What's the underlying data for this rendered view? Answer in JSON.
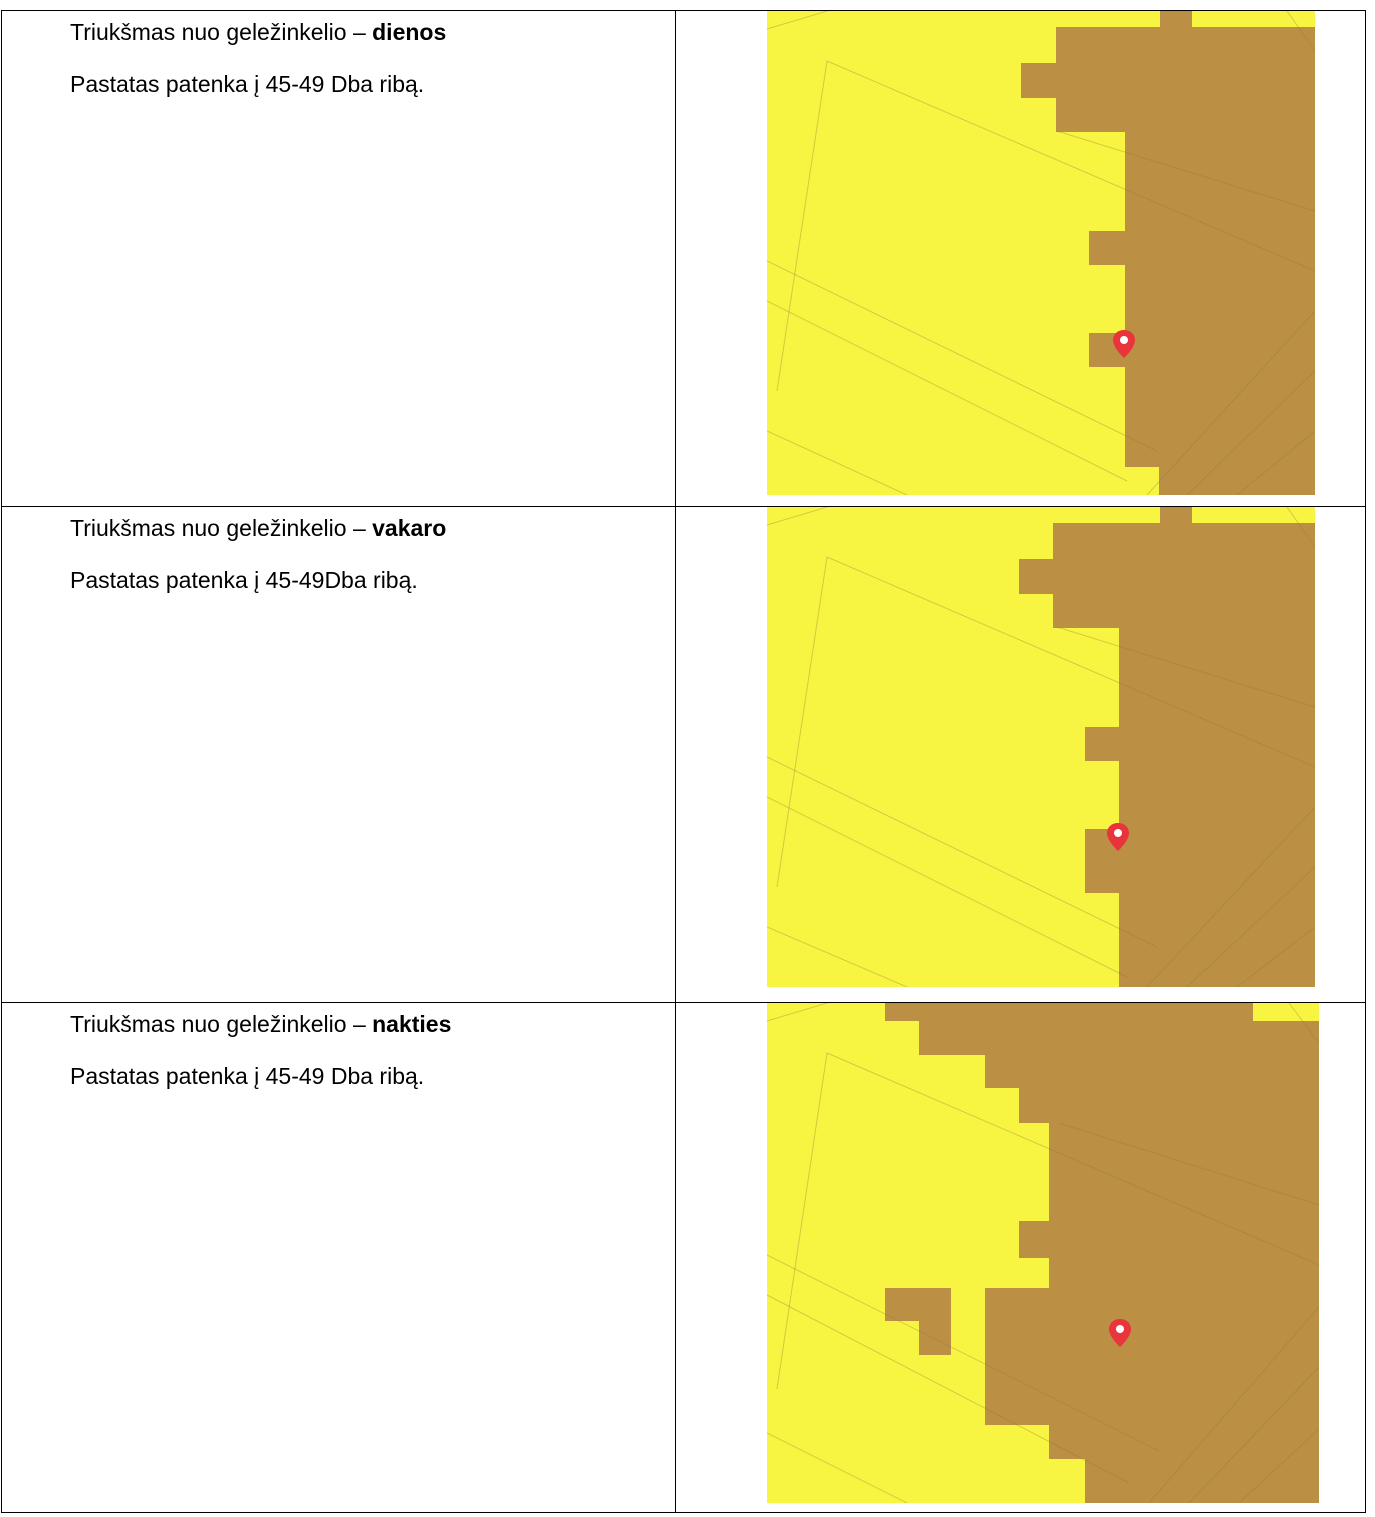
{
  "rows": [
    {
      "heading_prefix": "Triukšmas nuo geležinkelio – ",
      "heading_bold": "dienos",
      "description": "Pastatas patenka į 45-49 Dba ribą.",
      "map": {
        "zone_color_low": "#f8f542",
        "zone_color_high": "#bb9044",
        "marker_color": "#e8343a",
        "marker_icon": "map-pin-icon"
      }
    },
    {
      "heading_prefix": "Triukšmas nuo geležinkelio – ",
      "heading_bold": "vakaro",
      "description": "Pastatas patenka į 45-49Dba ribą.",
      "map": {
        "zone_color_low": "#f8f542",
        "zone_color_high": "#bb9044",
        "marker_color": "#e8343a",
        "marker_icon": "map-pin-icon"
      }
    },
    {
      "heading_prefix": "Triukšmas nuo geležinkelio – ",
      "heading_bold": "nakties",
      "description": "Pastatas patenka į 45-49 Dba ribą.",
      "map": {
        "zone_color_low": "#f8f542",
        "zone_color_high": "#bb9044",
        "marker_color": "#e8343a",
        "marker_icon": "map-pin-icon"
      }
    }
  ]
}
